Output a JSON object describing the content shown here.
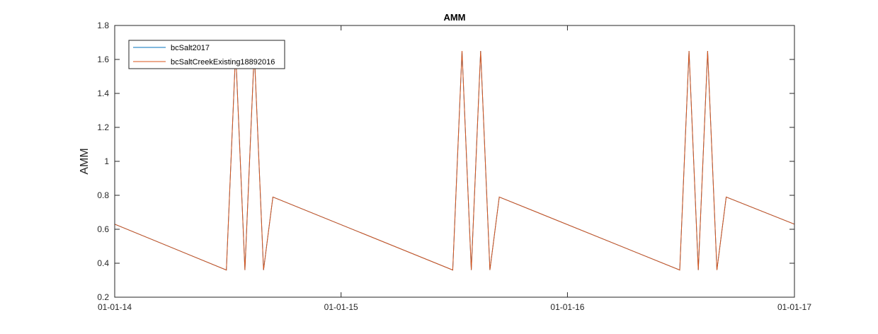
{
  "chart_data": {
    "type": "line",
    "title": "AMM",
    "xlabel": "",
    "ylabel": "AMM",
    "xlim": [
      "01-01-14",
      "01-01-17"
    ],
    "ylim": [
      0.2,
      1.8
    ],
    "x_ticks": [
      "01-01-14",
      "01-01-15",
      "01-01-16",
      "01-01-17"
    ],
    "y_ticks": [
      "0.2",
      "0.4",
      "0.6",
      "0.8",
      "1",
      "1.2",
      "1.4",
      "1.6",
      "1.8"
    ],
    "grid": false,
    "legend_position": "top-left",
    "series": [
      {
        "name": "bcSalt2017",
        "color": "#0072bd",
        "points": [
          [
            "01-01-14",
            0.63
          ],
          [
            "06-30-14",
            0.36
          ],
          [
            "07-15-14",
            1.65
          ],
          [
            "07-30-14",
            0.36
          ],
          [
            "08-14-14",
            1.65
          ],
          [
            "08-29-14",
            0.36
          ],
          [
            "09-13-14",
            0.79
          ],
          [
            "06-30-15",
            0.36
          ],
          [
            "07-15-15",
            1.65
          ],
          [
            "07-30-15",
            0.36
          ],
          [
            "08-14-15",
            1.65
          ],
          [
            "08-29-15",
            0.36
          ],
          [
            "09-13-15",
            0.79
          ],
          [
            "06-30-16",
            0.36
          ],
          [
            "07-15-16",
            1.65
          ],
          [
            "07-30-16",
            0.36
          ],
          [
            "08-14-16",
            1.65
          ],
          [
            "08-29-16",
            0.36
          ],
          [
            "09-13-16",
            0.79
          ],
          [
            "01-01-17",
            0.63
          ]
        ]
      },
      {
        "name": "bcSaltCreekExisting18892016",
        "color": "#d95319",
        "points": [
          [
            "01-01-14",
            0.63
          ],
          [
            "06-30-14",
            0.36
          ],
          [
            "07-15-14",
            1.65
          ],
          [
            "07-30-14",
            0.36
          ],
          [
            "08-14-14",
            1.65
          ],
          [
            "08-29-14",
            0.36
          ],
          [
            "09-13-14",
            0.79
          ],
          [
            "06-30-15",
            0.36
          ],
          [
            "07-15-15",
            1.65
          ],
          [
            "07-30-15",
            0.36
          ],
          [
            "08-14-15",
            1.65
          ],
          [
            "08-29-15",
            0.36
          ],
          [
            "09-13-15",
            0.79
          ],
          [
            "06-30-16",
            0.36
          ],
          [
            "07-15-16",
            1.65
          ],
          [
            "07-30-16",
            0.36
          ],
          [
            "08-14-16",
            1.65
          ],
          [
            "08-29-16",
            0.36
          ],
          [
            "09-13-16",
            0.79
          ],
          [
            "01-01-17",
            0.63
          ]
        ]
      }
    ]
  }
}
